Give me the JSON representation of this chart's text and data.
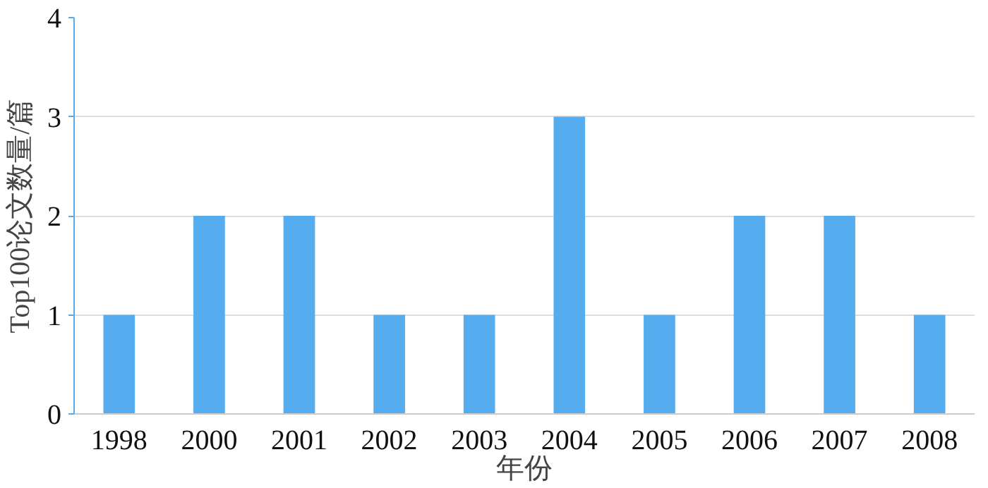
{
  "chart_data": {
    "type": "bar",
    "xlabel": "年份",
    "ylabel": "Top100论文数量/篇",
    "categories": [
      "1998",
      "2000",
      "2001",
      "2002",
      "2003",
      "2004",
      "2005",
      "2006",
      "2007",
      "2008"
    ],
    "values": [
      1,
      2,
      2,
      1,
      1,
      3,
      1,
      2,
      2,
      1
    ],
    "color": "#55acee",
    "ylim": [
      0,
      4
    ],
    "yticks": [
      0,
      1,
      2,
      3,
      4
    ],
    "grid": "y"
  }
}
